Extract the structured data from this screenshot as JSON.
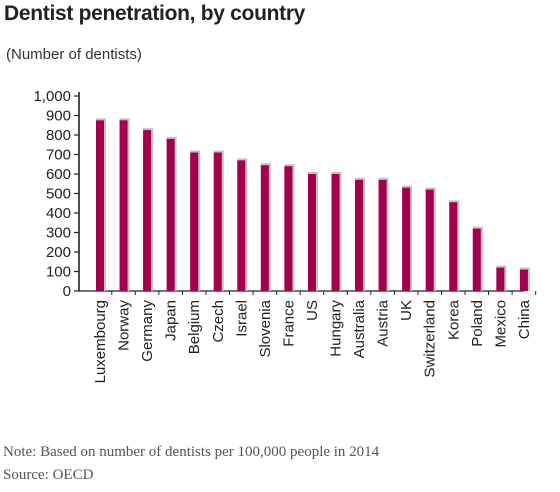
{
  "chart_data": {
    "type": "bar",
    "title": "Dentist penetration, by country",
    "ylabel": "(Number of dentists)",
    "categories": [
      "Luxembourg",
      "Norway",
      "Germany",
      "Japan",
      "Belgium",
      "Czech",
      "Israel",
      "Slovenia",
      "France",
      "US",
      "Hungary",
      "Australia",
      "Austria",
      "UK",
      "Switzerland",
      "Korea",
      "Poland",
      "Mexico",
      "China"
    ],
    "values": [
      875,
      875,
      825,
      780,
      710,
      710,
      670,
      645,
      640,
      600,
      600,
      570,
      570,
      530,
      520,
      455,
      320,
      120,
      110
    ],
    "ylim": [
      0,
      1000
    ],
    "yticks": [
      "0",
      "100",
      "200",
      "300",
      "400",
      "500",
      "600",
      "700",
      "800",
      "900",
      "1,000"
    ],
    "grid": false,
    "colors": {
      "bar": "#a3004f",
      "shadow": "#c4c0c6",
      "axis": "#222222"
    }
  },
  "footer": {
    "note": "Note: Based on number of dentists per 100,000 people in 2014",
    "source": "Source: OECD"
  }
}
